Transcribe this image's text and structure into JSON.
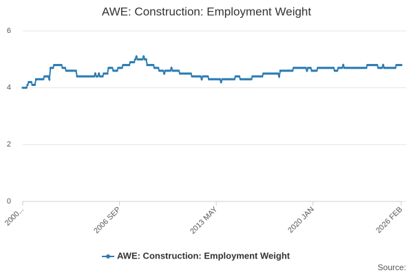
{
  "chart_data": {
    "type": "line",
    "title": "AWE: Construction: Employment Weight",
    "source": "Source:",
    "categories": [
      "2000...",
      null,
      null,
      null,
      null,
      null,
      null,
      null,
      null,
      null,
      null,
      null,
      null,
      null,
      null,
      null,
      null,
      null,
      null,
      null,
      null,
      null,
      null,
      null,
      null,
      null,
      null,
      null,
      null,
      null,
      null,
      null,
      null,
      null,
      null,
      null,
      null,
      null,
      null,
      null,
      null,
      null,
      null,
      null,
      null,
      null,
      null,
      null,
      null,
      null,
      null,
      null,
      null,
      null,
      null,
      null,
      null,
      null,
      null,
      null,
      null,
      null,
      null,
      null,
      null,
      null,
      null,
      null,
      null,
      null,
      null,
      null,
      null,
      null,
      null,
      null,
      null,
      null,
      null,
      null,
      "2006 SEP",
      null,
      null,
      null,
      null,
      null,
      null,
      null,
      null,
      null,
      null,
      null,
      null,
      null,
      null,
      null,
      null,
      null,
      null,
      null,
      null,
      null,
      null,
      null,
      null,
      null,
      null,
      null,
      null,
      null,
      null,
      null,
      null,
      null,
      null,
      null,
      null,
      null,
      null,
      null,
      null,
      null,
      null,
      null,
      null,
      null,
      null,
      null,
      null,
      null,
      null,
      null,
      null,
      null,
      null,
      null,
      null,
      null,
      null,
      null,
      null,
      null,
      null,
      null,
      null,
      null,
      null,
      null,
      null,
      null,
      null,
      null,
      null,
      null,
      null,
      null,
      null,
      null,
      null,
      null,
      "2013 MAY",
      null,
      null,
      null,
      null,
      null,
      null,
      null,
      null,
      null,
      null,
      null,
      null,
      null,
      null,
      null,
      null,
      null,
      null,
      null,
      null,
      null,
      null,
      null,
      null,
      null,
      null,
      null,
      null,
      null,
      null,
      null,
      null,
      null,
      null,
      null,
      null,
      null,
      null,
      null,
      null,
      null,
      null,
      null,
      null,
      null,
      null,
      null,
      null,
      null,
      null,
      null,
      null,
      null,
      null,
      null,
      null,
      null,
      null,
      null,
      null,
      null,
      null,
      null,
      null,
      null,
      null,
      null,
      null,
      null,
      null,
      null,
      null,
      null,
      null,
      null,
      null,
      null,
      null,
      null,
      "2020 JAN",
      null,
      null,
      null,
      null,
      null,
      null,
      null,
      null,
      null,
      null,
      null,
      null,
      null,
      null,
      null,
      null,
      null,
      null,
      null,
      null,
      null,
      null,
      null,
      null,
      null,
      null,
      null,
      null,
      null,
      null,
      null,
      null,
      null,
      null,
      null,
      null,
      null,
      null,
      null,
      null,
      null,
      null,
      null,
      null,
      null,
      null,
      null,
      null,
      null,
      null,
      null,
      null,
      null,
      null,
      null,
      null,
      null,
      null,
      null,
      null,
      null,
      null,
      null,
      null,
      null,
      null,
      null,
      null,
      null,
      null,
      null,
      null,
      "2026 FEB"
    ],
    "series": [
      {
        "name": "AWE: Construction: Employment Weight",
        "color": "#2b7bb3",
        "values": [
          4.0,
          4.0,
          4.0,
          4.0,
          4.1,
          4.2,
          4.2,
          4.2,
          4.1,
          4.1,
          4.1,
          4.3,
          4.3,
          4.3,
          4.3,
          4.3,
          4.3,
          4.3,
          4.4,
          4.4,
          4.4,
          4.4,
          4.3,
          4.7,
          4.7,
          4.7,
          4.8,
          4.8,
          4.8,
          4.8,
          4.8,
          4.8,
          4.8,
          4.7,
          4.7,
          4.7,
          4.6,
          4.6,
          4.6,
          4.6,
          4.6,
          4.6,
          4.6,
          4.6,
          4.6,
          4.4,
          4.4,
          4.4,
          4.4,
          4.4,
          4.4,
          4.4,
          4.4,
          4.4,
          4.4,
          4.4,
          4.4,
          4.4,
          4.4,
          4.4,
          4.5,
          4.4,
          4.4,
          4.5,
          4.4,
          4.4,
          4.4,
          4.5,
          4.5,
          4.5,
          4.5,
          4.7,
          4.7,
          4.7,
          4.7,
          4.6,
          4.6,
          4.6,
          4.6,
          4.7,
          4.7,
          4.7,
          4.7,
          4.8,
          4.8,
          4.8,
          4.8,
          4.8,
          4.8,
          4.9,
          4.9,
          4.9,
          4.9,
          5.0,
          5.1,
          5.0,
          5.0,
          5.0,
          5.0,
          5.0,
          5.1,
          5.0,
          5.0,
          4.8,
          4.8,
          4.8,
          4.8,
          4.8,
          4.8,
          4.7,
          4.7,
          4.7,
          4.7,
          4.6,
          4.6,
          4.6,
          4.6,
          4.5,
          4.6,
          4.6,
          4.6,
          4.6,
          4.6,
          4.7,
          4.6,
          4.6,
          4.6,
          4.6,
          4.6,
          4.6,
          4.5,
          4.5,
          4.5,
          4.5,
          4.5,
          4.5,
          4.5,
          4.5,
          4.5,
          4.5,
          4.4,
          4.4,
          4.4,
          4.4,
          4.4,
          4.4,
          4.4,
          4.4,
          4.3,
          4.4,
          4.4,
          4.4,
          4.4,
          4.4,
          4.3,
          4.3,
          4.3,
          4.3,
          4.3,
          4.3,
          4.3,
          4.3,
          4.3,
          4.3,
          4.2,
          4.3,
          4.3,
          4.3,
          4.3,
          4.3,
          4.3,
          4.3,
          4.3,
          4.3,
          4.3,
          4.3,
          4.4,
          4.4,
          4.4,
          4.4,
          4.3,
          4.3,
          4.3,
          4.3,
          4.3,
          4.3,
          4.3,
          4.3,
          4.3,
          4.3,
          4.4,
          4.4,
          4.4,
          4.4,
          4.4,
          4.4,
          4.4,
          4.4,
          4.4,
          4.5,
          4.5,
          4.5,
          4.5,
          4.5,
          4.5,
          4.5,
          4.5,
          4.5,
          4.5,
          4.5,
          4.5,
          4.5,
          4.4,
          4.6,
          4.6,
          4.6,
          4.6,
          4.6,
          4.6,
          4.6,
          4.6,
          4.6,
          4.6,
          4.6,
          4.7,
          4.7,
          4.7,
          4.7,
          4.7,
          4.7,
          4.7,
          4.7,
          4.7,
          4.7,
          4.7,
          4.6,
          4.7,
          4.7,
          4.7,
          4.6,
          4.6,
          4.6,
          4.6,
          4.6,
          4.7,
          4.7,
          4.7,
          4.7,
          4.7,
          4.7,
          4.7,
          4.7,
          4.7,
          4.7,
          4.7,
          4.7,
          4.7,
          4.7,
          4.6,
          4.6,
          4.6,
          4.7,
          4.7,
          4.7,
          4.7,
          4.8,
          4.7,
          4.7,
          4.7,
          4.7,
          4.7,
          4.7,
          4.7,
          4.7,
          4.7,
          4.7,
          4.7,
          4.7,
          4.7,
          4.7,
          4.7,
          4.7,
          4.7,
          4.7,
          4.7,
          4.8,
          4.8,
          4.8,
          4.8,
          4.8,
          4.8,
          4.8,
          4.8,
          4.8,
          4.7,
          4.7,
          4.7,
          4.7,
          4.8,
          4.7,
          4.7,
          4.7,
          4.7,
          4.7,
          4.7,
          4.7,
          4.7,
          4.7,
          4.7,
          4.8,
          4.8,
          4.8,
          4.8,
          4.8
        ]
      }
    ],
    "ylim": [
      0,
      6
    ],
    "yticks": [
      0,
      2,
      4,
      6
    ],
    "grid": true,
    "legend": "bottom"
  }
}
